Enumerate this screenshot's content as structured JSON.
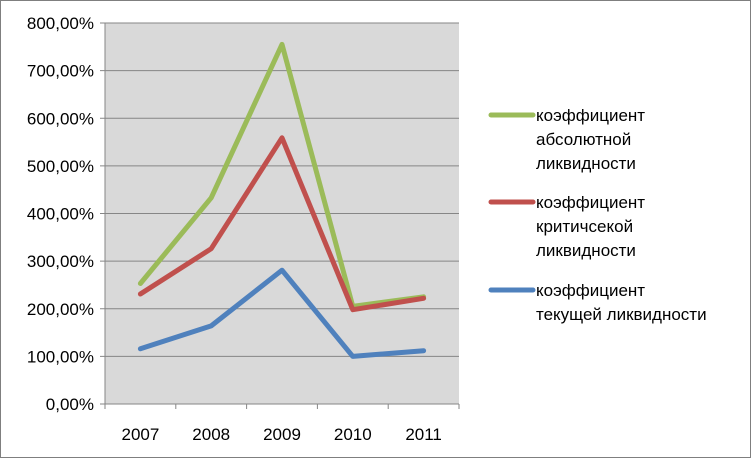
{
  "chart_data": {
    "type": "line",
    "categories": [
      "2007",
      "2008",
      "2009",
      "2010",
      "2011"
    ],
    "ylim": [
      0,
      800
    ],
    "y_ticks": [
      0,
      100,
      200,
      300,
      400,
      500,
      600,
      700,
      800
    ],
    "y_tick_labels": [
      "0,00%",
      "100,00%",
      "200,00%",
      "300,00%",
      "400,00%",
      "500,00%",
      "600,00%",
      "700,00%",
      "800,00%"
    ],
    "grid": true,
    "legend_position": "right",
    "plot_background": "#d9d9d9",
    "series": [
      {
        "name_lines": [
          "коэффициент",
          "абсолютной",
          "ликвидности"
        ],
        "color": "#9bbb59",
        "values": [
          253,
          433,
          755,
          205,
          225
        ]
      },
      {
        "name_lines": [
          "коэффициент",
          "критичсекой",
          "ликвидности"
        ],
        "color": "#c0504d",
        "values": [
          231,
          326,
          559,
          198,
          222
        ]
      },
      {
        "name_lines": [
          "коэффициент",
          "текущей ликвидности"
        ],
        "color": "#4f81bd",
        "values": [
          116,
          164,
          281,
          100,
          112
        ]
      }
    ]
  }
}
